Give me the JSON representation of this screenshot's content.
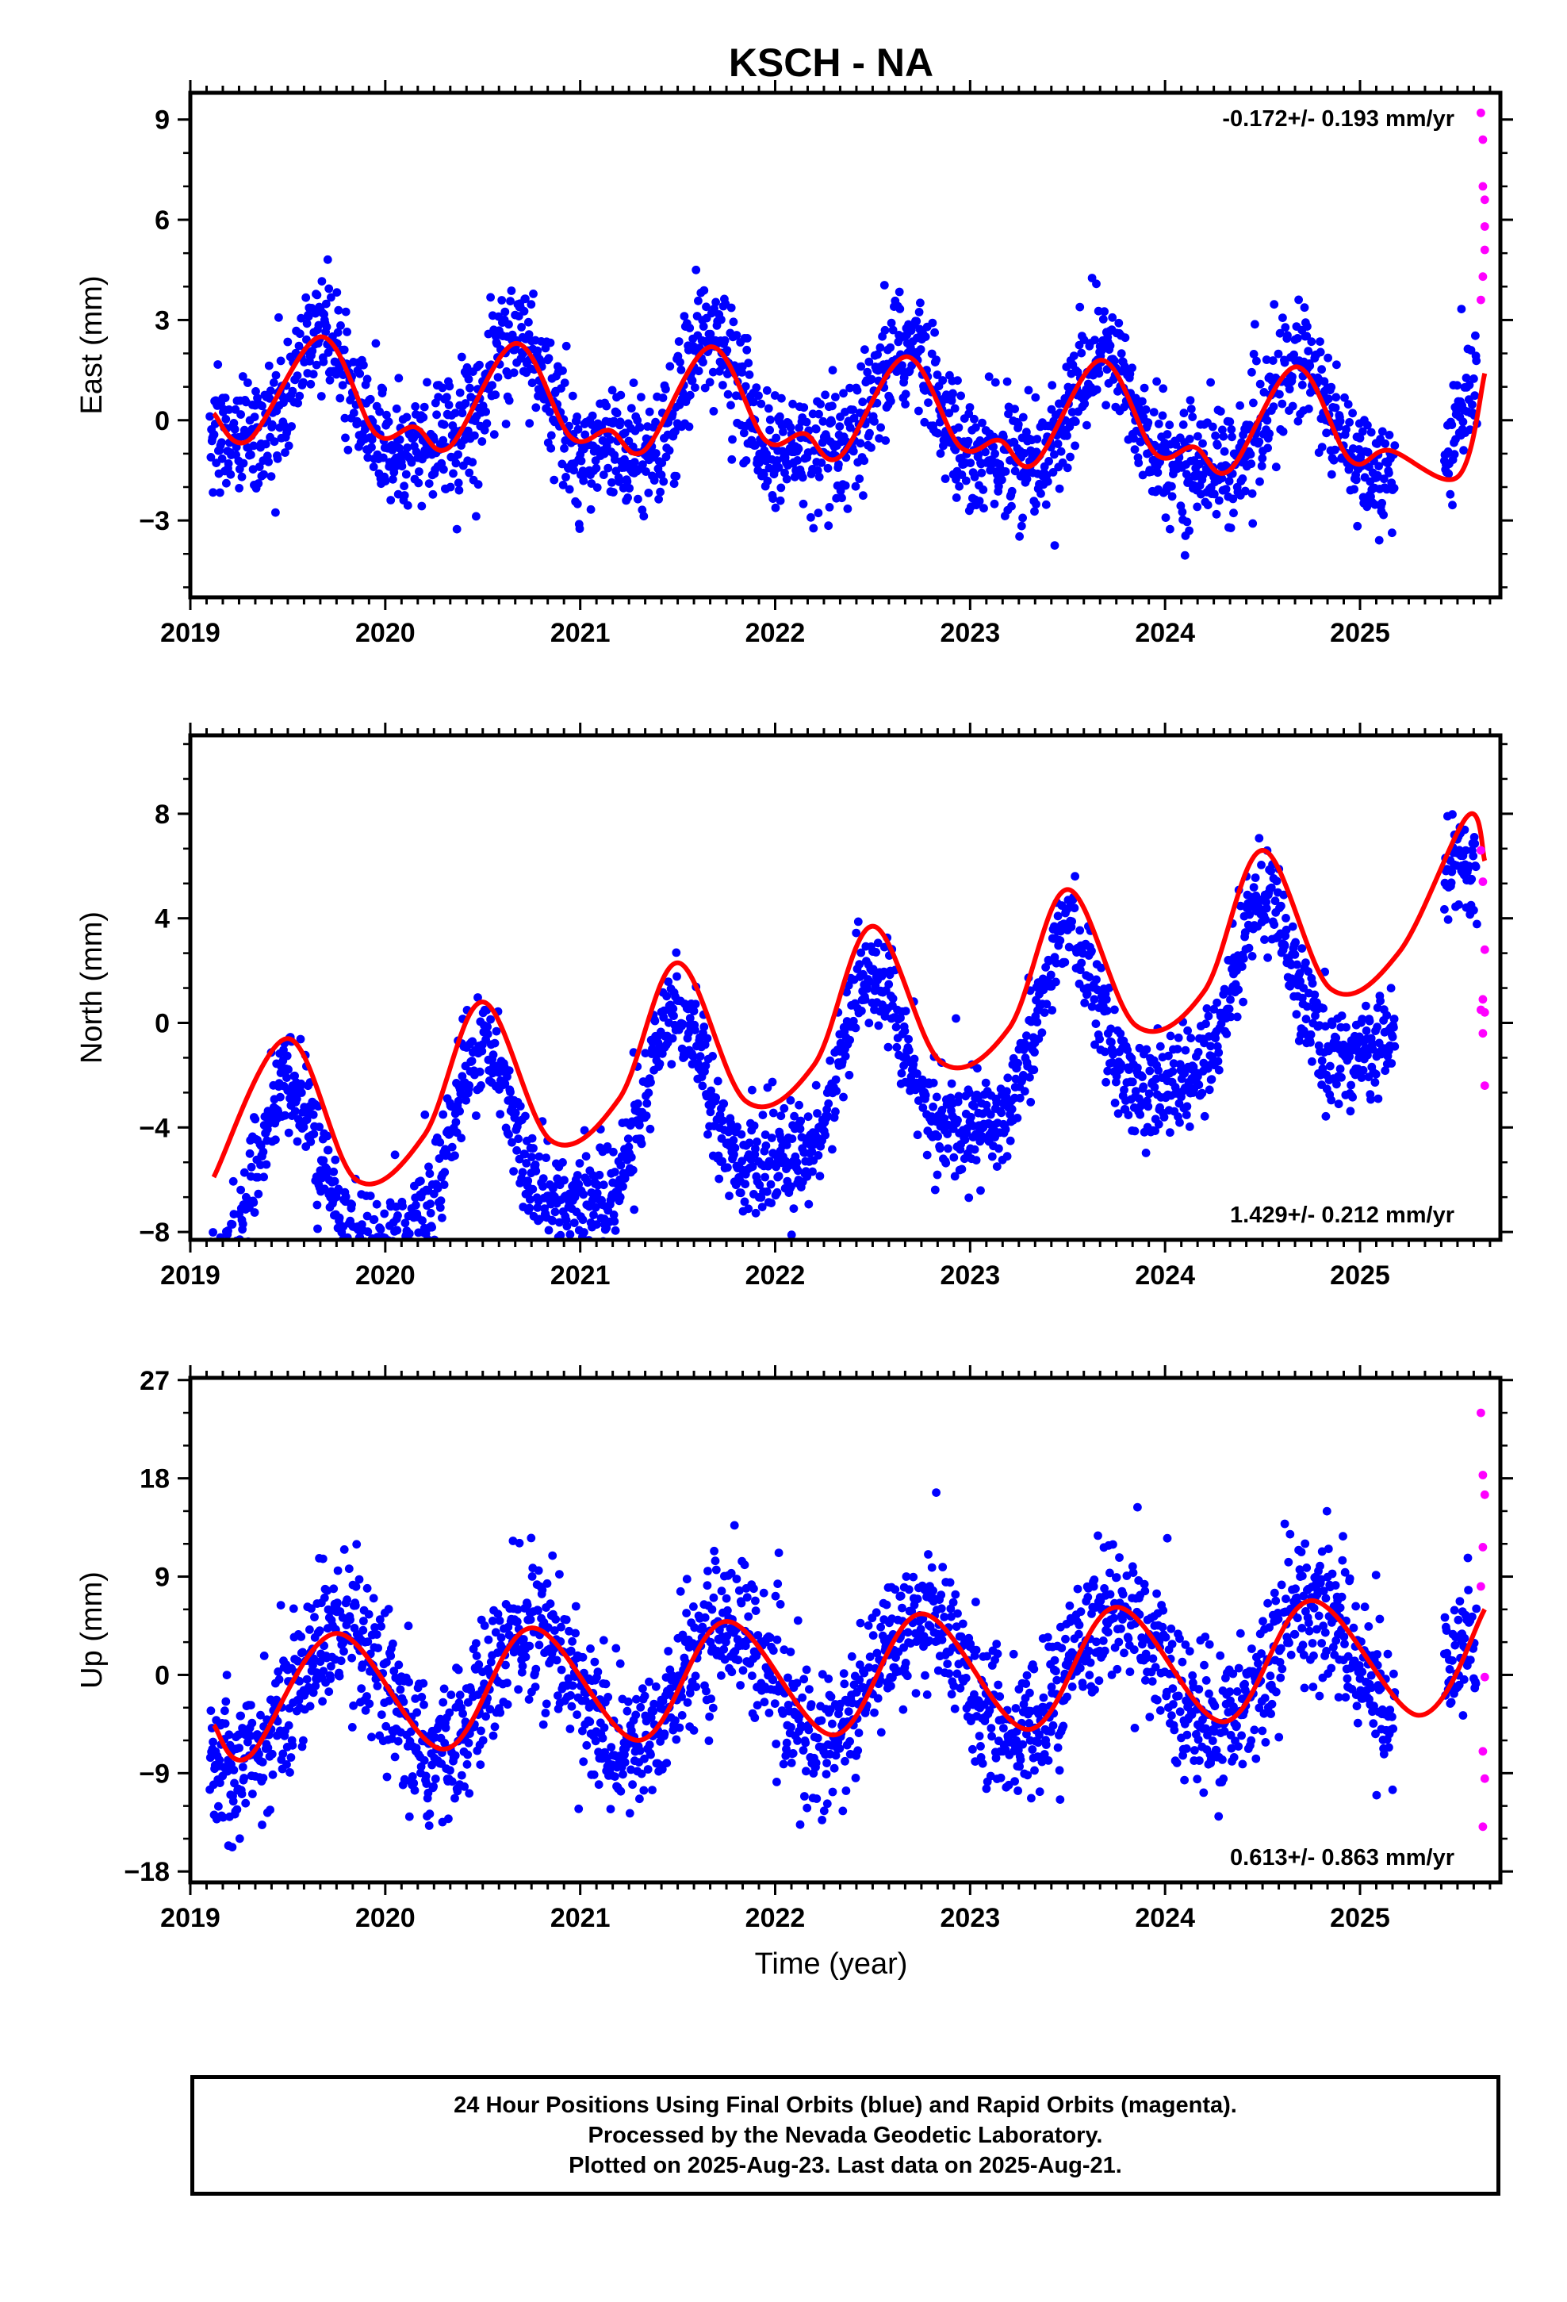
{
  "title": "KSCH - NA",
  "colors": {
    "final_orbits": "#0000ff",
    "rapid_orbits": "#ff00ff",
    "model_fit": "#ff0000"
  },
  "footer": {
    "line1": "24 Hour Positions Using Final Orbits (blue) and Rapid Orbits (magenta).",
    "line2": "Processed by the Nevada Geodetic Laboratory.",
    "line3": "Plotted on 2025-Aug-23. Last data on 2025-Aug-21."
  },
  "chart_data": [
    {
      "type": "scatter",
      "ylabel": "East (mm)",
      "xlabel": "",
      "xlim": [
        2019.0,
        2025.72
      ],
      "ylim": [
        -5.3,
        9.8
      ],
      "x_ticks": [
        "2019",
        "2020",
        "2021",
        "2022",
        "2023",
        "2024",
        "2025"
      ],
      "y_ticks": [
        "9",
        "6",
        "3",
        "0",
        "-3"
      ],
      "y_tick_values": [
        9,
        6,
        3,
        0,
        -3
      ],
      "rate": "-0.172+/- 0.193 mm/yr",
      "rate_position": "top-right",
      "model": {
        "offset": 0.05,
        "trend": -0.172,
        "annual_amp": 1.6,
        "annual_peak": 0.68,
        "semiannual_amp": 0.6,
        "semiannual_phase": 0.18,
        "noise_sd": 0.9
      },
      "model_line_points": [
        [
          2019.12,
          0.2
        ],
        [
          2019.3,
          -0.6
        ],
        [
          2019.67,
          2.5
        ],
        [
          2019.95,
          -0.4
        ],
        [
          2020.15,
          -0.2
        ],
        [
          2020.33,
          -0.8
        ],
        [
          2020.67,
          2.3
        ],
        [
          2020.95,
          -0.5
        ],
        [
          2021.15,
          -0.3
        ],
        [
          2021.33,
          -0.9
        ],
        [
          2021.67,
          2.2
        ],
        [
          2021.95,
          -0.6
        ],
        [
          2022.15,
          -0.4
        ],
        [
          2022.33,
          -1.1
        ],
        [
          2022.67,
          1.9
        ],
        [
          2022.95,
          -0.8
        ],
        [
          2023.15,
          -0.6
        ],
        [
          2023.33,
          -1.3
        ],
        [
          2023.67,
          1.8
        ],
        [
          2023.95,
          -1.0
        ],
        [
          2024.15,
          -0.8
        ],
        [
          2024.33,
          -1.5
        ],
        [
          2024.67,
          1.6
        ],
        [
          2024.95,
          -1.2
        ],
        [
          2025.15,
          -0.9
        ],
        [
          2025.5,
          -1.7
        ],
        [
          2025.64,
          1.4
        ]
      ],
      "series": [
        {
          "name": "Final Orbits",
          "color": "#0000ff",
          "x_range": [
            2019.1,
            2025.6
          ]
        },
        {
          "name": "Rapid Orbits",
          "color": "#ff00ff",
          "x": [
            2025.62,
            2025.63,
            2025.63,
            2025.64,
            2025.64,
            2025.64,
            2025.63,
            2025.62
          ],
          "y": [
            9.2,
            8.4,
            7.0,
            6.6,
            5.8,
            5.1,
            4.3,
            3.6
          ]
        }
      ]
    },
    {
      "type": "scatter",
      "ylabel": "North (mm)",
      "xlabel": "",
      "xlim": [
        2019.0,
        2025.72
      ],
      "ylim": [
        -8.3,
        11.0
      ],
      "x_ticks": [
        "2019",
        "2020",
        "2021",
        "2022",
        "2023",
        "2024",
        "2025"
      ],
      "y_ticks": [
        "8",
        "4",
        "0",
        "-4",
        "-8"
      ],
      "y_tick_values": [
        8,
        4,
        0,
        -4,
        -8
      ],
      "rate": "1.429+/- 0.212 mm/yr",
      "rate_position": "bottom-right",
      "model_line_points": [
        [
          2019.12,
          -5.9
        ],
        [
          2019.5,
          -0.6
        ],
        [
          2019.85,
          -6.0
        ],
        [
          2020.2,
          -4.3
        ],
        [
          2020.5,
          0.8
        ],
        [
          2020.85,
          -4.5
        ],
        [
          2021.2,
          -2.9
        ],
        [
          2021.5,
          2.3
        ],
        [
          2021.85,
          -3.0
        ],
        [
          2022.2,
          -1.6
        ],
        [
          2022.5,
          3.7
        ],
        [
          2022.85,
          -1.5
        ],
        [
          2023.2,
          -0.2
        ],
        [
          2023.5,
          5.1
        ],
        [
          2023.85,
          -0.1
        ],
        [
          2024.2,
          1.2
        ],
        [
          2024.5,
          6.6
        ],
        [
          2024.85,
          1.3
        ],
        [
          2025.2,
          2.7
        ],
        [
          2025.55,
          7.9
        ],
        [
          2025.64,
          6.2
        ]
      ],
      "model": {
        "offset": -2.6,
        "trend": 1.429,
        "annual_amp": 3.3,
        "annual_peak": 0.5,
        "semiannual_amp": 0.9,
        "semiannual_phase": 0.0,
        "noise_sd": 1.0
      },
      "series": [
        {
          "name": "Final Orbits",
          "color": "#0000ff",
          "x_range": [
            2019.1,
            2025.6
          ]
        },
        {
          "name": "Rapid Orbits",
          "color": "#ff00ff",
          "x": [
            2025.62,
            2025.63,
            2025.64,
            2025.63,
            2025.62,
            2025.64,
            2025.63,
            2025.64
          ],
          "y": [
            6.6,
            5.4,
            2.8,
            0.9,
            0.5,
            0.4,
            -0.4,
            -2.4
          ]
        }
      ]
    },
    {
      "type": "scatter",
      "ylabel": "Up (mm)",
      "xlabel": "Time (year)",
      "xlim": [
        2019.0,
        2025.72
      ],
      "ylim": [
        -19.0,
        27.2
      ],
      "x_ticks": [
        "2019",
        "2020",
        "2021",
        "2022",
        "2023",
        "2024",
        "2025"
      ],
      "y_ticks": [
        "27",
        "18",
        "9",
        "0",
        "-9",
        "-18"
      ],
      "y_tick_values": [
        27,
        18,
        9,
        0,
        -9,
        -18
      ],
      "rate": "0.613+/- 0.863 mm/yr",
      "rate_position": "bottom-right",
      "model_line_points": [
        [
          2019.12,
          -4.6
        ],
        [
          2019.3,
          -7.5
        ],
        [
          2019.75,
          3.8
        ],
        [
          2020.3,
          -6.8
        ],
        [
          2020.75,
          4.3
        ],
        [
          2021.3,
          -6.0
        ],
        [
          2021.75,
          4.9
        ],
        [
          2022.3,
          -5.5
        ],
        [
          2022.75,
          5.6
        ],
        [
          2023.3,
          -5.0
        ],
        [
          2023.75,
          6.2
        ],
        [
          2024.3,
          -4.3
        ],
        [
          2024.75,
          6.8
        ],
        [
          2025.3,
          -3.7
        ],
        [
          2025.64,
          6.0
        ]
      ],
      "model": {
        "offset": -0.6,
        "trend": 0.613,
        "annual_amp": 5.8,
        "annual_peak": 0.75,
        "semiannual_amp": 0.0,
        "semiannual_phase": 0.0,
        "noise_sd": 3.3
      },
      "series": [
        {
          "name": "Final Orbits",
          "color": "#0000ff",
          "x_range": [
            2019.1,
            2025.6
          ]
        },
        {
          "name": "Rapid Orbits",
          "color": "#ff00ff",
          "x": [
            2025.62,
            2025.63,
            2025.64,
            2025.63,
            2025.62,
            2025.64,
            2025.63,
            2025.64,
            2025.63
          ],
          "y": [
            24.0,
            18.3,
            16.5,
            11.7,
            8.1,
            -0.2,
            -7.0,
            -9.5,
            -13.9
          ]
        }
      ]
    }
  ]
}
